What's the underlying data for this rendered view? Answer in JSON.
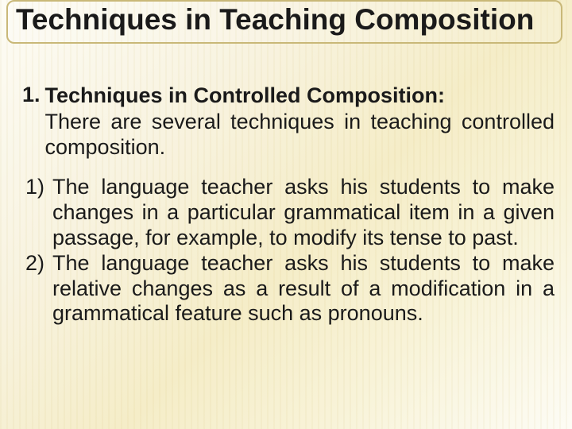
{
  "colors": {
    "text": "#1a1a1a",
    "border": "#c9b878",
    "bg_gradient": [
      "#fdfcf5",
      "#f8f3e0",
      "#f5edc8",
      "#f8f3d8",
      "#fdfcf5"
    ]
  },
  "typography": {
    "title_fontsize_pt": 28,
    "body_fontsize_pt": 20,
    "font_family": "Arial"
  },
  "title": "Techniques in Teaching Composition",
  "section": {
    "number": "1.",
    "heading": "Techniques in Controlled Composition:",
    "intro": "There are several techniques in teaching controlled composition."
  },
  "items": [
    {
      "num": "1)",
      "text": "The language teacher asks his students to make changes in a particular grammatical item in a given passage, for example, to modify its tense to past."
    },
    {
      "num": "2)",
      "text": "The language teacher asks his students to make relative changes as a result of a modification in a grammatical feature such as pronouns."
    }
  ]
}
